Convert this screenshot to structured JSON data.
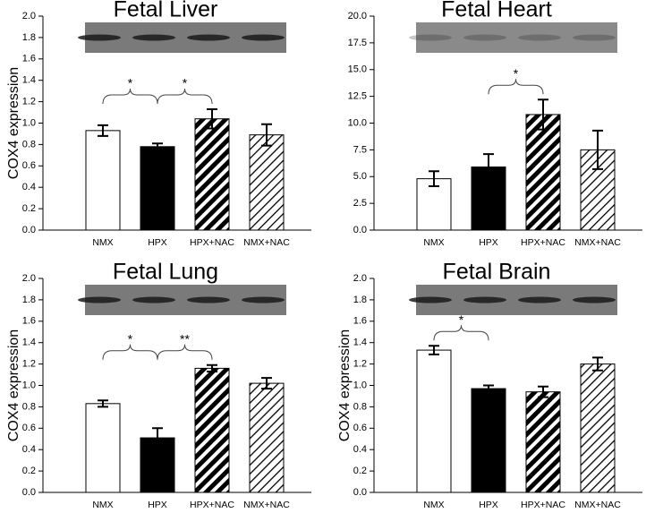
{
  "chart_data": [
    {
      "type": "bar",
      "title": "Fetal Liver",
      "ylabel": "COX4 expression",
      "categories": [
        "NMX",
        "HPX",
        "HPX+NAC",
        "NMX+NAC"
      ],
      "values": [
        0.93,
        0.78,
        1.04,
        0.89
      ],
      "errors": [
        0.05,
        0.03,
        0.09,
        0.1
      ],
      "fills": [
        "#ffffff",
        "#000000",
        "hatch-bold",
        "hatch-light"
      ],
      "ylim": [
        0,
        2
      ],
      "yticks": [
        {
          "value": 0,
          "label": "0.0"
        },
        0.2,
        0.4,
        0.6,
        0.8,
        {
          "value": 1,
          "label": "1.0"
        },
        1.2,
        1.4,
        1.6,
        1.8,
        {
          "value": 2,
          "label": "2.0"
        }
      ],
      "annotations": [
        {
          "text": "*",
          "pair": [
            0,
            1
          ]
        },
        {
          "text": "*",
          "pair": [
            1,
            2
          ]
        }
      ]
    },
    {
      "type": "bar",
      "title": "Fetal Heart",
      "categories": [
        "NMX",
        "HPX",
        "HPX+NAC",
        "NMX+NAC"
      ],
      "values": [
        4.8,
        5.9,
        10.8,
        7.5
      ],
      "errors": [
        0.7,
        1.2,
        1.4,
        1.8
      ],
      "fills": [
        "#ffffff",
        "#000000",
        "hatch-bold",
        "hatch-light"
      ],
      "ylim": [
        0,
        20
      ],
      "yticks": [
        {
          "value": 0,
          "label": "0.0"
        },
        2.5,
        {
          "value": 5,
          "label": "5.0"
        },
        7.5,
        {
          "value": 10,
          "label": "10.0"
        },
        12.5,
        {
          "value": 15,
          "label": "15.0"
        },
        17.5,
        {
          "value": 20,
          "label": "20.0"
        }
      ],
      "annotations": [
        {
          "text": "*",
          "pair": [
            1,
            2
          ]
        }
      ]
    },
    {
      "type": "bar",
      "title": "Fetal Lung",
      "ylabel": "COX4 expression",
      "categories": [
        "NMX",
        "HPX",
        "HPX+NAC",
        "NMX+NAC"
      ],
      "values": [
        0.83,
        0.51,
        1.16,
        1.02
      ],
      "errors": [
        0.03,
        0.09,
        0.03,
        0.05
      ],
      "fills": [
        "#ffffff",
        "#000000",
        "hatch-bold",
        "hatch-light"
      ],
      "ylim": [
        0,
        2
      ],
      "yticks": [
        {
          "value": 0,
          "label": "0.0"
        },
        0.2,
        0.4,
        0.6,
        0.8,
        {
          "value": 1,
          "label": "1.0"
        },
        1.2,
        1.4,
        1.6,
        1.8,
        {
          "value": 2,
          "label": "2.0"
        }
      ],
      "annotations": [
        {
          "text": "*",
          "pair": [
            0,
            1
          ]
        },
        {
          "text": "**",
          "pair": [
            1,
            2
          ]
        }
      ]
    },
    {
      "type": "bar",
      "title": "Fetal Brain",
      "ylabel": "COX4 expression",
      "categories": [
        "NMX",
        "HPX",
        "HPX+NAC",
        "NMX+NAC"
      ],
      "values": [
        1.33,
        0.97,
        0.94,
        1.2
      ],
      "errors": [
        0.04,
        0.03,
        0.05,
        0.06
      ],
      "fills": [
        "#ffffff",
        "#000000",
        "hatch-bold",
        "hatch-light"
      ],
      "ylim": [
        0,
        2
      ],
      "yticks": [
        {
          "value": 0,
          "label": "0.0"
        },
        0.2,
        0.4,
        0.6,
        0.8,
        {
          "value": 1,
          "label": "1.0"
        },
        1.2,
        1.4,
        1.6,
        1.8,
        {
          "value": 2,
          "label": "2.0"
        }
      ],
      "annotations": [
        {
          "text": "*",
          "pair": [
            0,
            1
          ]
        }
      ]
    }
  ]
}
